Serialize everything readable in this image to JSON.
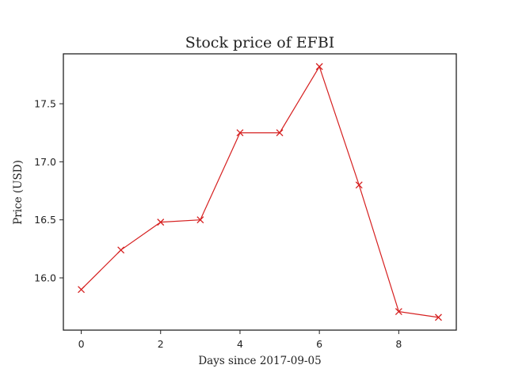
{
  "chart_data": {
    "type": "line",
    "title": "Stock price of EFBI",
    "xlabel": "Days since 2017-09-05",
    "ylabel": "Price (USD)",
    "x": [
      0,
      1,
      2,
      3,
      4,
      5,
      6,
      7,
      8,
      9
    ],
    "series": [
      {
        "values": [
          15.9,
          16.24,
          16.48,
          16.5,
          17.25,
          17.25,
          17.82,
          16.8,
          15.71,
          15.66
        ],
        "color": "#d62020",
        "marker": "x"
      }
    ],
    "xlim": [
      -0.45,
      9.45
    ],
    "ylim": [
      15.55,
      17.93
    ],
    "xticks": [
      0,
      2,
      4,
      6,
      8
    ],
    "yticks": [
      16.0,
      16.5,
      17.0,
      17.5
    ],
    "xtick_labels": [
      "0",
      "2",
      "4",
      "6",
      "8"
    ],
    "ytick_labels": [
      "16.0",
      "16.5",
      "17.0",
      "17.5"
    ],
    "grid": false
  }
}
